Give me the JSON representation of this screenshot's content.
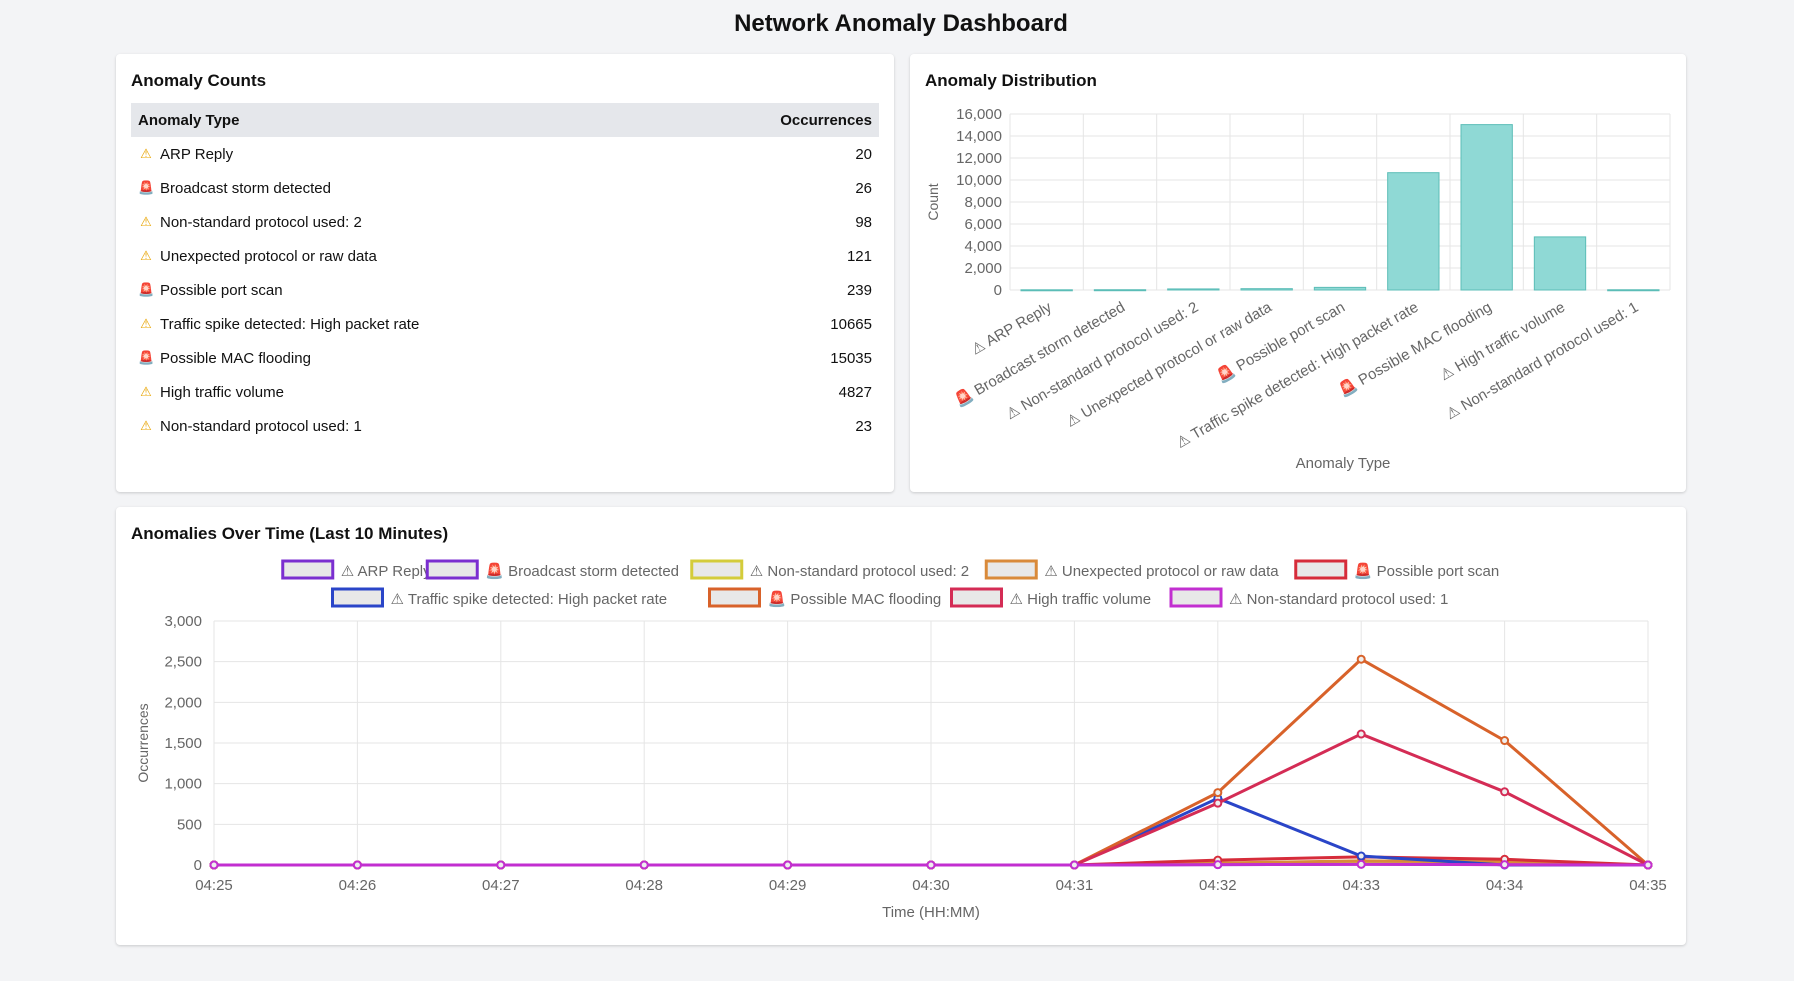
{
  "page": {
    "title": "Network Anomaly Dashboard"
  },
  "counts_card": {
    "title": "Anomaly Counts",
    "columns": [
      "Anomaly Type",
      "Occurrences"
    ],
    "rows": [
      {
        "icon": "warning",
        "glyph": "⚠",
        "type": "ARP Reply",
        "count": "20"
      },
      {
        "icon": "alarm",
        "glyph": "🚨",
        "type": "Broadcast storm detected",
        "count": "26"
      },
      {
        "icon": "warning",
        "glyph": "⚠",
        "type": "Non-standard protocol used: 2",
        "count": "98"
      },
      {
        "icon": "warning",
        "glyph": "⚠",
        "type": "Unexpected protocol or raw data",
        "count": "121"
      },
      {
        "icon": "alarm",
        "glyph": "🚨",
        "type": "Possible port scan",
        "count": "239"
      },
      {
        "icon": "warning",
        "glyph": "⚠",
        "type": "Traffic spike detected: High packet rate",
        "count": "10665"
      },
      {
        "icon": "alarm",
        "glyph": "🚨",
        "type": "Possible MAC flooding",
        "count": "15035"
      },
      {
        "icon": "warning",
        "glyph": "⚠",
        "type": "High traffic volume",
        "count": "4827"
      },
      {
        "icon": "warning",
        "glyph": "⚠",
        "type": "Non-standard protocol used: 1",
        "count": "23"
      }
    ]
  },
  "distribution_card": {
    "title": "Anomaly Distribution"
  },
  "timeline_card": {
    "title": "Anomalies Over Time (Last 10 Minutes)"
  },
  "colors": {
    "bar_fill": "#8fd9d5",
    "bar_stroke": "#5bbdb7",
    "grid": "#e5e5e5",
    "axis_text": "#666666"
  },
  "chart_data": [
    {
      "type": "bar",
      "title": "Anomaly Distribution",
      "xlabel": "Anomaly Type",
      "ylabel": "Count",
      "ylim": [
        0,
        16000
      ],
      "yticks": [
        0,
        2000,
        4000,
        6000,
        8000,
        10000,
        12000,
        14000,
        16000
      ],
      "ytick_labels": [
        "0",
        "2,000",
        "4,000",
        "6,000",
        "8,000",
        "10,000",
        "12,000",
        "14,000",
        "16,000"
      ],
      "categories": [
        "⚠ ARP Reply",
        "🚨 Broadcast storm detected",
        "⚠ Non-standard protocol used: 2",
        "⚠ Unexpected protocol or raw data",
        "🚨 Possible port scan",
        "⚠ Traffic spike detected: High packet rate",
        "🚨 Possible MAC flooding",
        "⚠ High traffic volume",
        "⚠ Non-standard protocol used: 1"
      ],
      "values": [
        20,
        26,
        98,
        121,
        239,
        10665,
        15035,
        4827,
        23
      ],
      "grid": true,
      "legend": "none"
    },
    {
      "type": "line",
      "title": "Anomalies Over Time (Last 10 Minutes)",
      "xlabel": "Time (HH:MM)",
      "ylabel": "Occurrences",
      "ylim": [
        0,
        3000
      ],
      "yticks": [
        0,
        500,
        1000,
        1500,
        2000,
        2500,
        3000
      ],
      "ytick_labels": [
        "0",
        "500",
        "1,000",
        "1,500",
        "2,000",
        "2,500",
        "3,000"
      ],
      "x": [
        "04:25",
        "04:26",
        "04:27",
        "04:28",
        "04:29",
        "04:30",
        "04:31",
        "04:32",
        "04:33",
        "04:34",
        "04:35"
      ],
      "legend": "top",
      "grid": true,
      "series": [
        {
          "name": "⚠ ARP Reply",
          "color": "#7b2fd0",
          "values": [
            0,
            0,
            0,
            0,
            0,
            0,
            0,
            5,
            10,
            5,
            0
          ]
        },
        {
          "name": "🚨 Broadcast storm detected",
          "color": "#7b2fd0",
          "values": [
            0,
            0,
            0,
            0,
            0,
            0,
            0,
            8,
            12,
            6,
            0
          ]
        },
        {
          "name": "⚠ Non-standard protocol used: 2",
          "color": "#d4cc3a",
          "values": [
            0,
            0,
            0,
            0,
            0,
            0,
            0,
            20,
            40,
            30,
            0
          ]
        },
        {
          "name": "⚠ Unexpected protocol or raw data",
          "color": "#d98a3a",
          "values": [
            0,
            0,
            0,
            0,
            0,
            0,
            0,
            25,
            50,
            40,
            0
          ]
        },
        {
          "name": "🚨 Possible port scan",
          "color": "#d62c3a",
          "values": [
            0,
            0,
            0,
            0,
            0,
            0,
            0,
            60,
            100,
            70,
            0
          ]
        },
        {
          "name": "⚠ Traffic spike detected: High packet rate",
          "color": "#2a45c8",
          "values": [
            0,
            0,
            0,
            0,
            0,
            0,
            0,
            820,
            110,
            0,
            0
          ]
        },
        {
          "name": "🚨 Possible MAC flooding",
          "color": "#d8622a",
          "values": [
            0,
            0,
            0,
            0,
            0,
            0,
            0,
            890,
            2530,
            1530,
            0
          ]
        },
        {
          "name": "⚠ High traffic volume",
          "color": "#d42c55",
          "values": [
            0,
            0,
            0,
            0,
            0,
            0,
            0,
            760,
            1610,
            900,
            0
          ]
        },
        {
          "name": "⚠ Non-standard protocol used: 1",
          "color": "#c22fd0",
          "values": [
            0,
            0,
            0,
            0,
            0,
            0,
            0,
            4,
            8,
            4,
            0
          ]
        }
      ]
    }
  ]
}
